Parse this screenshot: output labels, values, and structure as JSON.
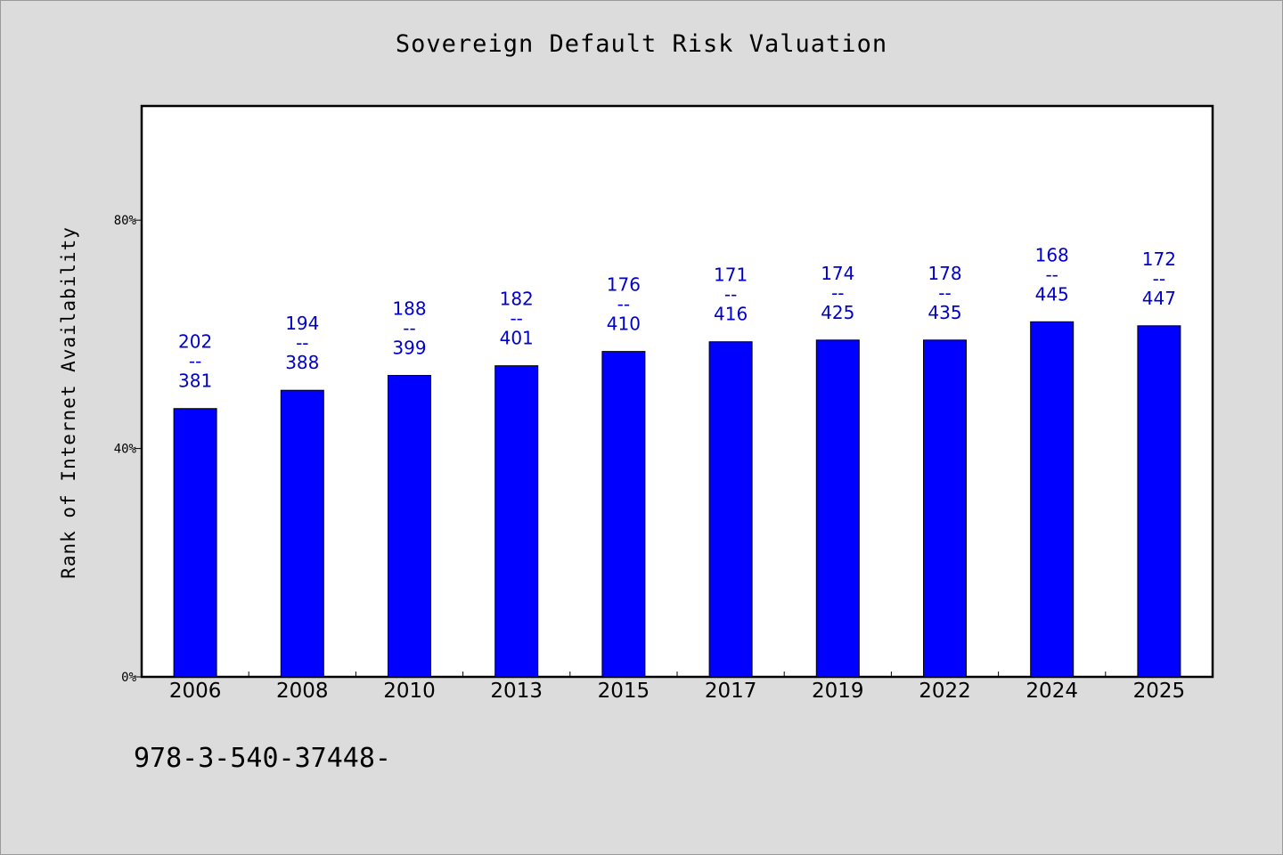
{
  "chart_data": {
    "type": "bar",
    "title": "Sovereign Default Risk Valuation",
    "xlabel": "",
    "ylabel": "Rank of Internet Availability",
    "ylim": [
      0,
      100
    ],
    "ytick_values": [
      0,
      40,
      80
    ],
    "ytick_labels": [
      "0%",
      "40%",
      "80%"
    ],
    "categories": [
      "2006",
      "2008",
      "2010",
      "2013",
      "2015",
      "2017",
      "2019",
      "2022",
      "2024",
      "2025"
    ],
    "values": [
      47,
      50.2,
      52.8,
      54.5,
      57,
      58.7,
      59,
      59,
      62.2,
      61.5
    ],
    "data_labels": [
      [
        "202",
        "--",
        "381"
      ],
      [
        "194",
        "--",
        "388"
      ],
      [
        "188",
        "--",
        "399"
      ],
      [
        "182",
        "--",
        "401"
      ],
      [
        "176",
        "--",
        "410"
      ],
      [
        "171",
        "--",
        "416"
      ],
      [
        "174",
        "--",
        "425"
      ],
      [
        "178",
        "--",
        "435"
      ],
      [
        "168",
        "--",
        "445"
      ],
      [
        "172",
        "--",
        "447"
      ]
    ],
    "bar_color": "#0000ff",
    "label_color": "#0000cc",
    "grid": false,
    "legend": "none"
  },
  "footnote": "978-3-540-37448-"
}
